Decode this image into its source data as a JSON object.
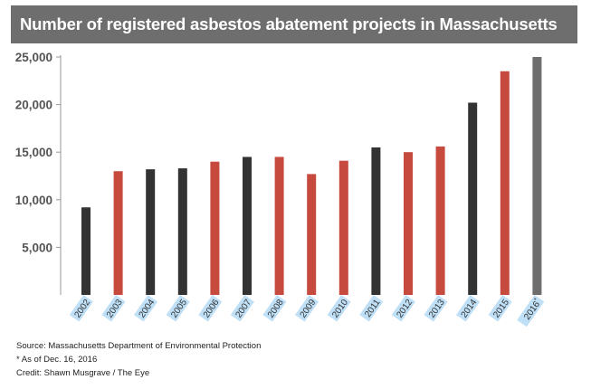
{
  "title": "Number of registered asbestos abatement projects in Massachusetts",
  "colors": {
    "title_bar": "#6e6e6e",
    "dark": "#333333",
    "red": "#c64a3e",
    "grey": "#6e6e6e",
    "tick_highlight": "#bfe0f7"
  },
  "chart_data": {
    "type": "bar",
    "categories": [
      "2002",
      "2003",
      "2004",
      "2005",
      "2006",
      "2007",
      "2008",
      "2009",
      "2010",
      "2011",
      "2012",
      "2013",
      "2014",
      "2015",
      "2016*"
    ],
    "values": [
      9200,
      13000,
      13200,
      13300,
      14000,
      14500,
      14500,
      12700,
      14100,
      15500,
      15000,
      15600,
      20200,
      23500,
      25000
    ],
    "bar_colors": [
      "dark",
      "red",
      "dark",
      "dark",
      "red",
      "dark",
      "red",
      "red",
      "red",
      "dark",
      "red",
      "red",
      "dark",
      "red",
      "grey"
    ],
    "yticks": [
      5000,
      10000,
      15000,
      20000,
      25000
    ],
    "ytick_labels": [
      "5,000",
      "10,000",
      "15,000",
      "20,000",
      "25,000"
    ],
    "ylim": [
      0,
      25000
    ],
    "title": "Number of registered asbestos abatement projects in Massachusetts",
    "xlabel": "",
    "ylabel": "",
    "grid": false
  },
  "footer": {
    "source": "Source: Massachusetts Department of Environmental Protection",
    "note": "* As of Dec. 16, 2016",
    "credit": "Credit: Shawn Musgrave / The Eye"
  }
}
